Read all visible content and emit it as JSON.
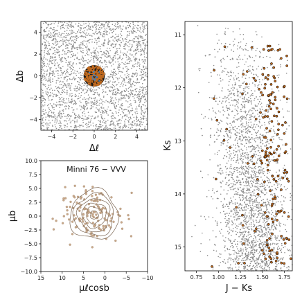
{
  "chart_data": [
    {
      "type": "scatter",
      "panel": "top-left",
      "xlabel": "Δℓ",
      "ylabel": "Δb",
      "xlim": [
        -5,
        5
      ],
      "ylim": [
        -5,
        5
      ],
      "xticks": [
        -4,
        -2,
        0,
        2,
        4
      ],
      "yticks": [
        -4,
        -2,
        0,
        2,
        4
      ],
      "xtick_labels": [
        "−4",
        "−2",
        "0",
        "2",
        "4"
      ],
      "ytick_labels": [
        "−4",
        "−2",
        "0",
        "2",
        "4"
      ],
      "field_color": "#8c8c8c",
      "member_color": "#c06a1f",
      "member_edge": "#000000",
      "core_color": "#3b82c4",
      "cluster_center": [
        0,
        0
      ],
      "cluster_radius": 1.0,
      "grid": false
    },
    {
      "type": "scatter",
      "panel": "bottom-left",
      "title": "Minni 76  −  VVV",
      "xlabel": "μℓcosb",
      "ylabel": "μb",
      "xlim": [
        15,
        -10
      ],
      "ylim": [
        -10,
        10
      ],
      "xticks": [
        15,
        10,
        5,
        0,
        -5,
        -10
      ],
      "yticks": [
        -10.0,
        -7.5,
        -5.0,
        -2.5,
        0.0,
        2.5,
        5.0,
        7.5,
        10.0
      ],
      "xtick_labels": [
        "15",
        "10",
        "5",
        "0",
        "−5",
        "−10"
      ],
      "ytick_labels": [
        "−10.0",
        "−7.5",
        "−5.0",
        "−2.5",
        "0.0",
        "2.5",
        "5.0",
        "7.5",
        "10.0"
      ],
      "point_color": "#c9a98b",
      "contour_color": "#8a7766",
      "center": [
        2.5,
        0.2
      ],
      "grid": false
    },
    {
      "type": "scatter",
      "panel": "right",
      "xlabel": "J − Ks",
      "ylabel": "Ks",
      "xlim": [
        0.62,
        1.84
      ],
      "ylim": [
        15.45,
        10.75
      ],
      "xticks": [
        0.75,
        1.0,
        1.25,
        1.5,
        1.75
      ],
      "yticks": [
        11,
        12,
        13,
        14,
        15
      ],
      "xtick_labels": [
        "0.75",
        "1.00",
        "1.25",
        "1.50",
        "1.75"
      ],
      "ytick_labels": [
        "11",
        "12",
        "13",
        "14",
        "15"
      ],
      "field_color": "#8c8c8c",
      "member_color": "#c06a1f",
      "member_edge": "#000000",
      "grid": false
    }
  ]
}
